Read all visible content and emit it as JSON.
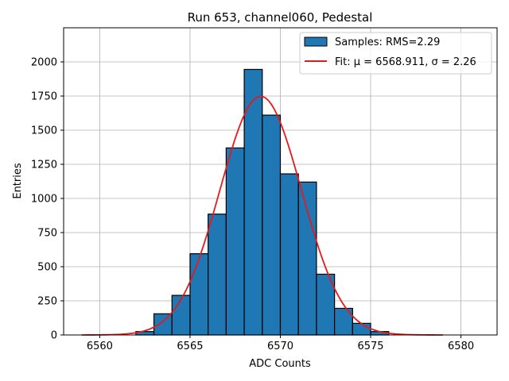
{
  "chart_data": {
    "type": "bar",
    "title": "Run 653, channel060, Pedestal",
    "xlabel": "ADC Counts",
    "ylabel": "Entries",
    "xlim": [
      6558,
      6582
    ],
    "ylim": [
      0,
      2250
    ],
    "xticks": [
      6560,
      6565,
      6570,
      6575,
      6580
    ],
    "yticks": [
      0,
      250,
      500,
      750,
      1000,
      1250,
      1500,
      1750,
      2000
    ],
    "grid": true,
    "legend_position": "top-right",
    "bar_color": "#1f77b4",
    "fit_color": "#e41a1c",
    "histogram": {
      "name": "Samples: RMS=2.29",
      "bin_width": 1,
      "bin_starts": [
        6562,
        6563,
        6564,
        6565,
        6566,
        6567,
        6568,
        6569,
        6570,
        6571,
        6572,
        6573,
        6574,
        6575
      ],
      "counts": [
        25,
        155,
        290,
        595,
        885,
        1370,
        1945,
        1610,
        1180,
        1120,
        445,
        195,
        85,
        25
      ]
    },
    "fit": {
      "name": "Fit: μ = 6568.911, σ = 2.26",
      "mu": 6568.911,
      "sigma": 2.26,
      "amplitude": 1748,
      "x_range": [
        6559,
        6579
      ]
    }
  }
}
